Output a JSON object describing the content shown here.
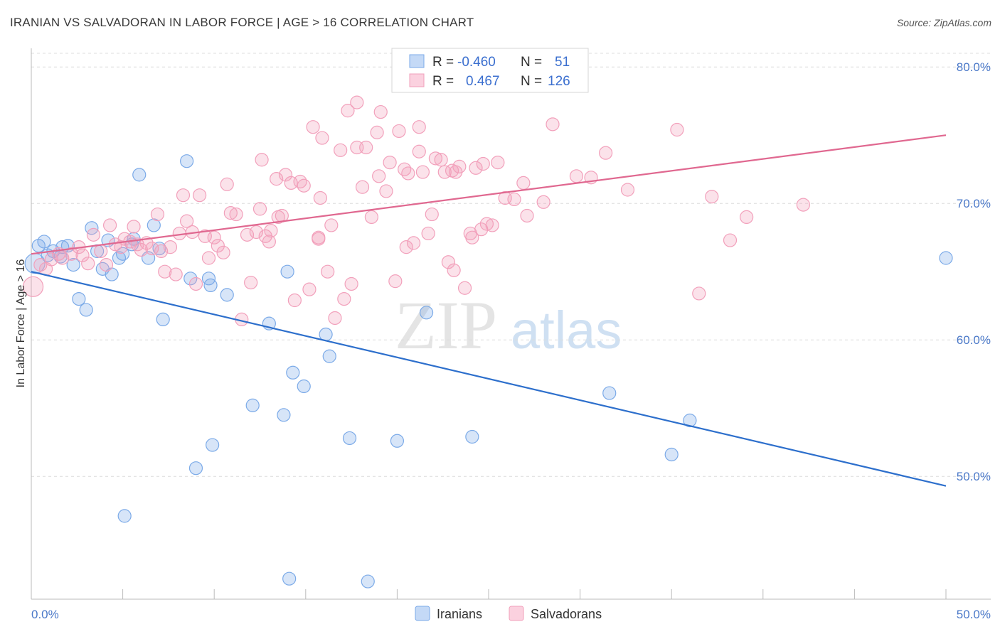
{
  "header": {
    "title": "IRANIAN VS SALVADORAN IN LABOR FORCE | AGE > 16 CORRELATION CHART",
    "source": "Source: ZipAtlas.com"
  },
  "watermark": {
    "zip": "ZIP",
    "atlas": "atlas"
  },
  "legend_box": {
    "row1": {
      "r_label": "R =",
      "r_value": "-0.460",
      "n_label": "N =",
      "n_value": "51"
    },
    "row2": {
      "r_label": "R =",
      "r_value": "0.467",
      "n_label": "N =",
      "n_value": "126"
    }
  },
  "colors": {
    "iranians": "#7baae8",
    "iranians_line": "#2d6fcc",
    "salvadorans": "#f2a0bb",
    "salvadorans_line": "#e06890",
    "tick_text": "#4a78c8"
  },
  "chart_data": {
    "type": "scatter",
    "title": "IRANIAN VS SALVADORAN IN LABOR FORCE | AGE > 16 CORRELATION CHART",
    "xlabel": "",
    "ylabel": "In Labor Force | Age > 16",
    "xlim": [
      0,
      50
    ],
    "ylim": [
      41,
      81
    ],
    "x_tick_labels": [
      "0.0%",
      "50.0%"
    ],
    "y_ticks": [
      50,
      60,
      70,
      80
    ],
    "y_tick_labels": [
      "50.0%",
      "60.0%",
      "70.0%",
      "80.0%"
    ],
    "grid": true,
    "legend_position": "bottom-center",
    "series": [
      {
        "name": "Iranians",
        "r": -0.46,
        "n": 51,
        "trend": {
          "x": [
            0,
            50
          ],
          "y": [
            65.0,
            49.3
          ]
        },
        "points": [
          [
            0.4,
            66.9
          ],
          [
            0.7,
            67.2
          ],
          [
            0.9,
            66.2
          ],
          [
            1.2,
            66.5
          ],
          [
            1.7,
            66.8
          ],
          [
            1.6,
            66.1
          ],
          [
            2.0,
            66.9
          ],
          [
            2.3,
            65.5
          ],
          [
            2.6,
            63.0
          ],
          [
            3.0,
            62.2
          ],
          [
            3.3,
            68.2
          ],
          [
            3.6,
            66.5
          ],
          [
            3.9,
            65.2
          ],
          [
            4.2,
            67.3
          ],
          [
            4.4,
            64.8
          ],
          [
            4.8,
            66.0
          ],
          [
            5.0,
            66.3
          ],
          [
            5.5,
            67.0
          ],
          [
            5.6,
            67.4
          ],
          [
            5.9,
            72.1
          ],
          [
            6.4,
            66.0
          ],
          [
            6.7,
            68.4
          ],
          [
            7.0,
            66.7
          ],
          [
            7.2,
            61.5
          ],
          [
            8.5,
            73.1
          ],
          [
            8.7,
            64.5
          ],
          [
            9.0,
            50.6
          ],
          [
            9.9,
            52.3
          ],
          [
            9.7,
            64.5
          ],
          [
            9.8,
            64.0
          ],
          [
            10.7,
            63.3
          ],
          [
            12.1,
            55.2
          ],
          [
            13.0,
            61.2
          ],
          [
            13.8,
            54.5
          ],
          [
            14.0,
            65.0
          ],
          [
            14.3,
            57.6
          ],
          [
            14.9,
            56.6
          ],
          [
            16.1,
            60.4
          ],
          [
            16.3,
            58.8
          ],
          [
            14.1,
            42.5
          ],
          [
            17.4,
            52.8
          ],
          [
            18.4,
            42.3
          ],
          [
            20.0,
            52.6
          ],
          [
            21.6,
            62.0
          ],
          [
            24.1,
            52.9
          ],
          [
            31.6,
            56.1
          ],
          [
            35.0,
            51.6
          ],
          [
            36.0,
            54.1
          ],
          [
            50.0,
            66.0
          ],
          [
            5.1,
            47.1
          ],
          [
            0.2,
            65.6
          ]
        ]
      },
      {
        "name": "Salvadorans",
        "r": 0.467,
        "n": 126,
        "trend": {
          "x": [
            0,
            50
          ],
          "y": [
            66.3,
            75.0
          ]
        },
        "points": [
          [
            0.1,
            63.9
          ],
          [
            0.5,
            65.5
          ],
          [
            0.8,
            65.2
          ],
          [
            1.1,
            65.9
          ],
          [
            1.5,
            66.3
          ],
          [
            1.7,
            66.0
          ],
          [
            2.2,
            66.3
          ],
          [
            2.6,
            66.8
          ],
          [
            2.8,
            66.2
          ],
          [
            3.1,
            65.6
          ],
          [
            3.4,
            67.7
          ],
          [
            3.8,
            66.5
          ],
          [
            4.1,
            65.5
          ],
          [
            4.3,
            68.4
          ],
          [
            4.6,
            67.0
          ],
          [
            4.9,
            66.8
          ],
          [
            5.1,
            67.4
          ],
          [
            5.4,
            67.2
          ],
          [
            5.6,
            68.3
          ],
          [
            5.8,
            67.0
          ],
          [
            6.0,
            66.6
          ],
          [
            6.3,
            67.1
          ],
          [
            6.6,
            66.7
          ],
          [
            6.9,
            69.2
          ],
          [
            7.1,
            66.5
          ],
          [
            7.3,
            65.0
          ],
          [
            7.6,
            66.8
          ],
          [
            7.9,
            64.8
          ],
          [
            8.1,
            67.8
          ],
          [
            8.3,
            70.6
          ],
          [
            8.5,
            68.7
          ],
          [
            8.8,
            67.9
          ],
          [
            9.0,
            64.1
          ],
          [
            9.2,
            70.6
          ],
          [
            9.5,
            67.6
          ],
          [
            9.7,
            66.0
          ],
          [
            10.0,
            67.5
          ],
          [
            10.2,
            66.9
          ],
          [
            10.5,
            66.4
          ],
          [
            10.7,
            71.4
          ],
          [
            10.9,
            69.3
          ],
          [
            11.2,
            69.2
          ],
          [
            11.5,
            61.5
          ],
          [
            11.8,
            67.7
          ],
          [
            12.0,
            64.2
          ],
          [
            12.3,
            67.9
          ],
          [
            12.5,
            69.6
          ],
          [
            12.8,
            67.6
          ],
          [
            13.0,
            67.2
          ],
          [
            13.1,
            68.0
          ],
          [
            13.4,
            71.8
          ],
          [
            13.7,
            69.1
          ],
          [
            13.9,
            72.1
          ],
          [
            14.2,
            71.5
          ],
          [
            14.4,
            62.9
          ],
          [
            14.7,
            71.6
          ],
          [
            14.9,
            71.3
          ],
          [
            15.2,
            63.7
          ],
          [
            15.4,
            75.6
          ],
          [
            15.7,
            67.4
          ],
          [
            15.9,
            74.8
          ],
          [
            16.2,
            65.0
          ],
          [
            16.4,
            68.4
          ],
          [
            16.6,
            61.6
          ],
          [
            16.9,
            73.9
          ],
          [
            17.1,
            63.0
          ],
          [
            17.3,
            76.8
          ],
          [
            17.5,
            64.1
          ],
          [
            17.8,
            74.1
          ],
          [
            18.1,
            71.2
          ],
          [
            18.3,
            74.1
          ],
          [
            18.6,
            69.0
          ],
          [
            18.9,
            75.2
          ],
          [
            19.1,
            76.7
          ],
          [
            19.4,
            70.9
          ],
          [
            19.6,
            73.0
          ],
          [
            19.9,
            64.3
          ],
          [
            20.1,
            75.3
          ],
          [
            20.4,
            72.5
          ],
          [
            20.6,
            72.2
          ],
          [
            20.9,
            67.1
          ],
          [
            21.2,
            75.6
          ],
          [
            21.4,
            72.3
          ],
          [
            21.7,
            67.8
          ],
          [
            21.9,
            69.2
          ],
          [
            22.1,
            73.3
          ],
          [
            22.4,
            73.2
          ],
          [
            22.6,
            72.3
          ],
          [
            23.0,
            72.4
          ],
          [
            23.2,
            72.3
          ],
          [
            23.4,
            72.7
          ],
          [
            23.7,
            63.8
          ],
          [
            24.0,
            67.8
          ],
          [
            24.3,
            72.6
          ],
          [
            24.6,
            68.1
          ],
          [
            24.9,
            68.5
          ],
          [
            25.5,
            73.0
          ],
          [
            25.9,
            70.4
          ],
          [
            26.4,
            70.3
          ],
          [
            27.1,
            69.1
          ],
          [
            28.5,
            75.8
          ],
          [
            29.8,
            72.0
          ],
          [
            31.4,
            73.7
          ],
          [
            32.6,
            71.0
          ],
          [
            35.3,
            75.4
          ],
          [
            36.5,
            63.4
          ],
          [
            37.2,
            70.5
          ],
          [
            38.2,
            67.3
          ],
          [
            39.1,
            69.0
          ],
          [
            42.2,
            69.9
          ],
          [
            23.1,
            65.1
          ],
          [
            24.7,
            72.9
          ],
          [
            25.2,
            68.4
          ],
          [
            15.8,
            70.4
          ],
          [
            17.8,
            77.4
          ],
          [
            21.2,
            73.8
          ],
          [
            12.6,
            73.2
          ],
          [
            13.5,
            69.0
          ],
          [
            15.7,
            67.5
          ],
          [
            19.0,
            72.0
          ],
          [
            20.5,
            66.8
          ],
          [
            22.8,
            65.7
          ],
          [
            24.1,
            67.5
          ],
          [
            26.9,
            71.5
          ],
          [
            28.0,
            70.1
          ],
          [
            30.6,
            71.9
          ]
        ]
      }
    ]
  },
  "legend": {
    "items": [
      "Iranians",
      "Salvadorans"
    ]
  }
}
